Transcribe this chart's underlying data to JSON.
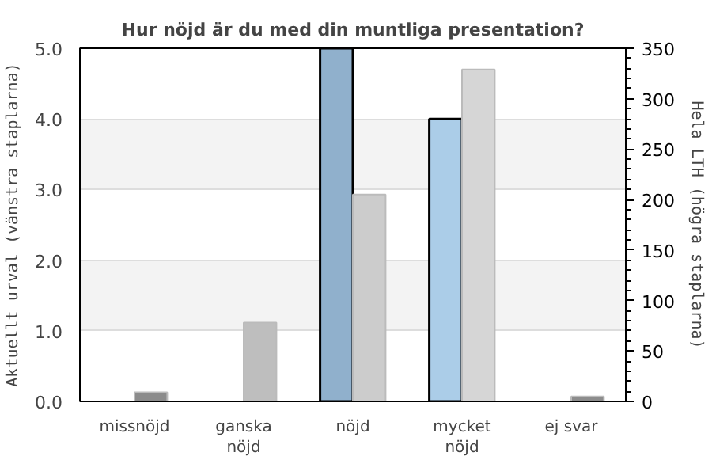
{
  "chart_data": {
    "type": "bar",
    "title": "Hur nöjd är du med din muntliga presentation?",
    "categories": [
      "missnöjd",
      "ganska\nnöjd",
      "nöjd",
      "mycket\nnöjd",
      "ej svar"
    ],
    "ylabel": "Aktuellt urval (vänstra staplarna)",
    "y2label": "Hela LTH (högra staplarna)",
    "series": [
      {
        "values": [
          null,
          null,
          5,
          4,
          null
        ],
        "colors": [
          "#90b0cc",
          "#90b0cc",
          "#90b0cc",
          "#abcde8",
          "#abcde8"
        ]
      },
      {
        "values": [
          9,
          78,
          205,
          329,
          5
        ],
        "axis": "y2",
        "colors": [
          "#8c8c8c",
          "#bebebe",
          "#cccccc",
          "#d6d6d6",
          "#8c8c8c"
        ]
      }
    ],
    "ylim": [
      0,
      5
    ],
    "yticks": [
      {
        "value": 0,
        "label": "0.0"
      },
      {
        "value": 1,
        "label": "1.0"
      },
      {
        "value": 2,
        "label": "2.0"
      },
      {
        "value": 3,
        "label": "3.0"
      },
      {
        "value": 4,
        "label": "4.0"
      },
      {
        "value": 5,
        "label": "5.0"
      }
    ],
    "y2lim": [
      0,
      350
    ],
    "y2ticks": [
      0,
      50,
      100,
      150,
      200,
      250,
      300,
      350
    ],
    "grid": "y"
  }
}
